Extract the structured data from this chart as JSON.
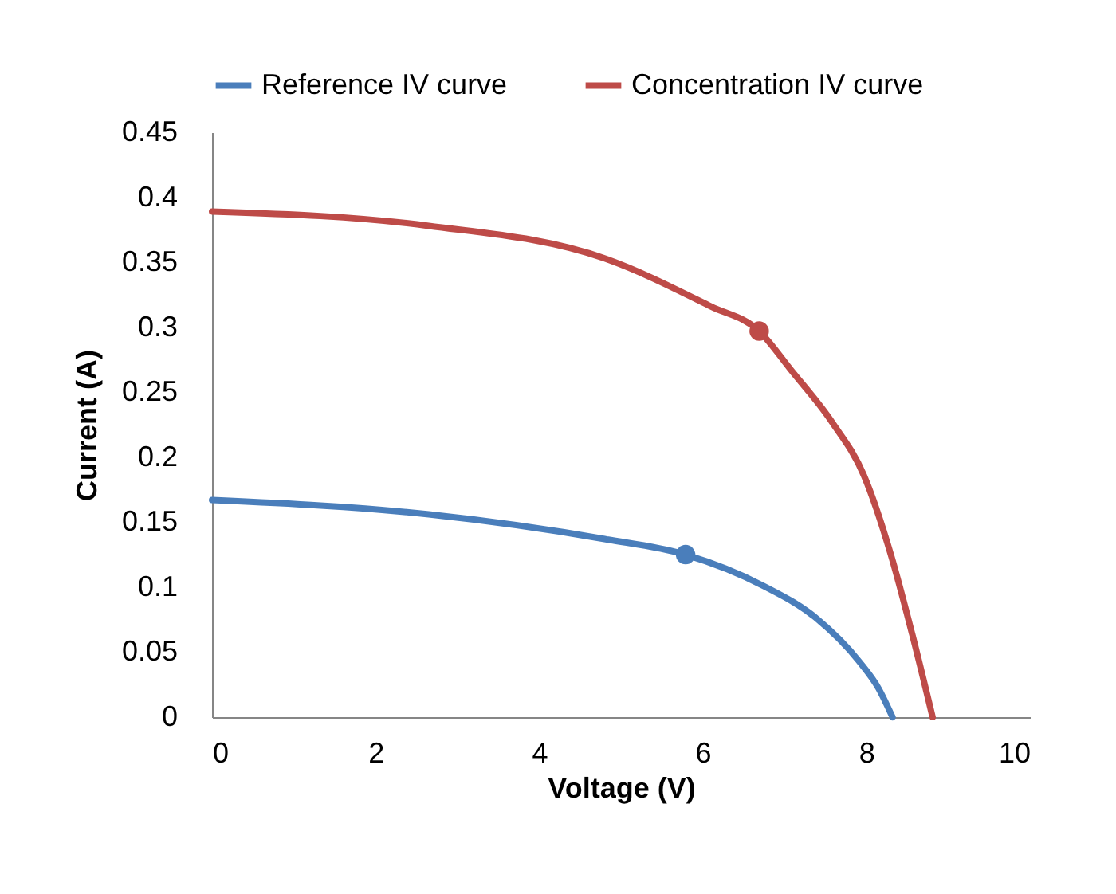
{
  "chart_data": {
    "type": "line",
    "xlabel": "Voltage (V)",
    "ylabel": "Current (A)",
    "xlim": [
      0,
      10
    ],
    "xticks": [
      0,
      2,
      4,
      6,
      8,
      10
    ],
    "ylim": [
      0,
      0.45
    ],
    "yticks": [
      0,
      0.05,
      0.1,
      0.15,
      0.2,
      0.25,
      0.3,
      0.35,
      0.4,
      0.45
    ],
    "grid": false,
    "legend": "top",
    "marker": "none",
    "line_style": "solid",
    "series": [
      {
        "name": "Reference IV curve",
        "color": "#4a7ebb",
        "x": [
          0,
          2.65,
          4.8,
          5.79,
          6.74,
          7.39,
          7.91,
          8.15,
          8.32
        ],
        "values": [
          0.167,
          0.156,
          0.137,
          0.125,
          0.101,
          0.076,
          0.043,
          0.022,
          0
        ]
      },
      {
        "name": "Concentration IV curve",
        "color": "#be4b48",
        "x": [
          0,
          2.65,
          4.8,
          6.1,
          6.69,
          7.08,
          7.58,
          7.97,
          8.3,
          8.56,
          8.81
        ],
        "values": [
          0.389,
          0.378,
          0.353,
          0.316,
          0.297,
          0.267,
          0.227,
          0.186,
          0.125,
          0.064,
          0
        ]
      },
      {
        "type": "scatter",
        "color": "#4a7ebb",
        "marker": "circle",
        "x": [
          5.79
        ],
        "values": [
          0.125
        ]
      },
      {
        "type": "scatter",
        "color": "#be4b48",
        "marker": "circle",
        "x": [
          6.69
        ],
        "values": [
          0.297
        ]
      }
    ]
  }
}
